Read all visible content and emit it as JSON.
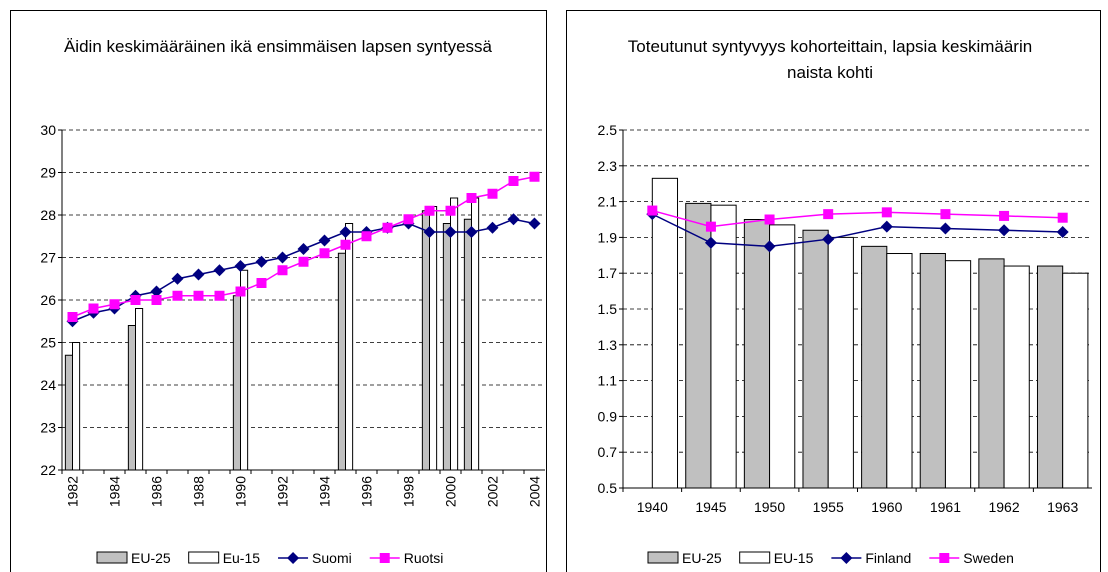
{
  "chart_data": [
    {
      "type": "combo",
      "title": "Äidin keskimääräinen ikä ensimmäisen lapsen syntyessä",
      "categories": [
        "1982",
        null,
        "1984",
        null,
        "1986",
        null,
        "1988",
        null,
        "1990",
        null,
        "1992",
        null,
        "1994",
        null,
        "1996",
        null,
        "1998",
        null,
        "2000",
        null,
        "2002",
        null,
        "2004"
      ],
      "ylim": [
        22,
        30
      ],
      "yticks": [
        22,
        23,
        24,
        25,
        26,
        27,
        28,
        29,
        30
      ],
      "grid": true,
      "series": [
        {
          "name": "EU-25",
          "kind": "bar",
          "color": "#c0c0c0",
          "values": [
            24.7,
            null,
            null,
            25.4,
            null,
            null,
            null,
            null,
            26.1,
            null,
            null,
            null,
            null,
            27.1,
            null,
            null,
            null,
            28.1,
            27.8,
            27.9,
            null,
            null,
            null
          ]
        },
        {
          "name": "Eu-15",
          "kind": "bar",
          "color": "#ffffff",
          "values": [
            25.0,
            null,
            null,
            25.8,
            null,
            null,
            null,
            null,
            26.7,
            null,
            null,
            null,
            null,
            27.8,
            null,
            null,
            null,
            28.2,
            28.4,
            28.4,
            null,
            null,
            null
          ]
        },
        {
          "name": "Suomi",
          "kind": "line",
          "marker": "diamond",
          "color": "#000080",
          "values": [
            25.5,
            25.7,
            25.8,
            26.1,
            26.2,
            26.5,
            26.6,
            26.7,
            26.8,
            26.9,
            27.0,
            27.2,
            27.4,
            27.6,
            27.6,
            27.7,
            27.8,
            27.6,
            27.6,
            27.6,
            27.7,
            27.9,
            27.8
          ]
        },
        {
          "name": "Ruotsi",
          "kind": "line",
          "marker": "square",
          "color": "#ff00ff",
          "values": [
            25.6,
            25.8,
            25.9,
            26.0,
            26.0,
            26.1,
            26.1,
            26.1,
            26.2,
            26.4,
            26.7,
            26.9,
            27.1,
            27.3,
            27.5,
            27.7,
            27.9,
            28.1,
            28.1,
            28.4,
            28.5,
            28.8,
            28.9
          ]
        }
      ]
    },
    {
      "type": "combo",
      "title": "Toteutunut syntyvyys kohorteittain, lapsia keskimäärin naista kohti",
      "categories": [
        "1940",
        "1945",
        "1950",
        "1955",
        "1960",
        "1961",
        "1962",
        "1963"
      ],
      "ylim": [
        0.5,
        2.5
      ],
      "yticks": [
        0.5,
        0.7,
        0.9,
        1.1,
        1.3,
        1.5,
        1.7,
        1.9,
        2.1,
        2.3,
        2.5
      ],
      "grid": true,
      "series": [
        {
          "name": "EU-25",
          "kind": "bar",
          "color": "#c0c0c0",
          "values": [
            null,
            2.09,
            2.0,
            1.94,
            1.85,
            1.81,
            1.78,
            1.74
          ]
        },
        {
          "name": "EU-15",
          "kind": "bar",
          "color": "#ffffff",
          "values": [
            2.23,
            2.08,
            1.97,
            1.9,
            1.81,
            1.77,
            1.74,
            1.7
          ]
        },
        {
          "name": "Finland",
          "kind": "line",
          "marker": "diamond",
          "color": "#000080",
          "values": [
            2.03,
            1.87,
            1.85,
            1.89,
            1.96,
            1.95,
            1.94,
            1.93
          ]
        },
        {
          "name": "Sweden",
          "kind": "line",
          "marker": "square",
          "color": "#ff00ff",
          "values": [
            2.05,
            1.96,
            2.0,
            2.03,
            2.04,
            2.03,
            2.02,
            2.01
          ]
        }
      ]
    }
  ]
}
